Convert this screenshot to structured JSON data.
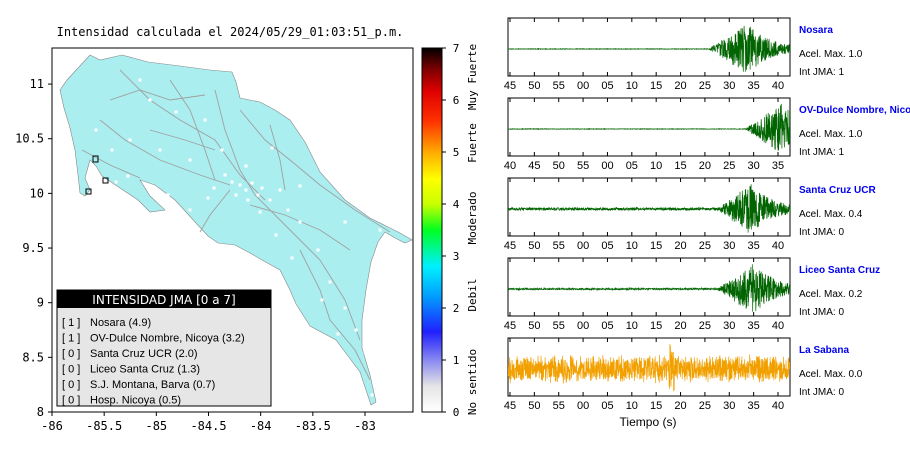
{
  "map": {
    "title": "Intensidad calculada el 2024/05/29_01:03:51_p.m.",
    "land_color": "#aaeef0",
    "x_ticks": [
      "-86",
      "-85.5",
      "-85",
      "-84.5",
      "-84",
      "-83.5",
      "-83"
    ],
    "y_ticks": [
      "11",
      "10.5",
      "10",
      "9.5",
      "9",
      "8.5",
      "8"
    ]
  },
  "colorbar": {
    "ticks": [
      "0",
      "1",
      "2",
      "3",
      "4",
      "5",
      "6",
      "7"
    ],
    "labels": [
      "No sentido",
      "Debil",
      "Moderado",
      "Fuerte",
      "Muy Fuerte"
    ]
  },
  "legend": {
    "title": "INTENSIDAD JMA [0 a 7]",
    "items": [
      {
        "code": "[ 1 ]",
        "text": "Nosara (4.9)"
      },
      {
        "code": "[ 1 ]",
        "text": "OV-Dulce Nombre, Nicoya (3.2)"
      },
      {
        "code": "[ 0 ]",
        "text": "Santa Cruz UCR (2.0)"
      },
      {
        "code": "[ 0 ]",
        "text": "Liceo Santa Cruz (1.3)"
      },
      {
        "code": "[ 0 ]",
        "text": "S.J. Montana, Barva (0.7)"
      },
      {
        "code": "[ 0 ]",
        "text": "Hosp. Nicoya (0.5)"
      }
    ]
  },
  "chart_data": {
    "type": "line",
    "xlabel": "Tiempo (s)",
    "panels": [
      {
        "name": "Nosara",
        "accel": "Acel. Max. 1.0",
        "jma": "Int JMA: 1",
        "ticks": [
          "45",
          "50",
          "55",
          "00",
          "05",
          "10",
          "15",
          "20",
          "25",
          "30",
          "35",
          "40"
        ],
        "color": "#006400",
        "event_start": 0.71,
        "peak": 0.85,
        "noise": 0.01
      },
      {
        "name": "OV-Dulce Nombre, Nicoya",
        "accel": "Acel. Max. 1.0",
        "jma": "Int JMA: 1",
        "ticks": [
          "40",
          "45",
          "50",
          "55",
          "00",
          "05",
          "10",
          "15",
          "20",
          "25",
          "30",
          "35"
        ],
        "color": "#006400",
        "event_start": 0.84,
        "peak": 0.97,
        "noise": 0.01
      },
      {
        "name": "Santa Cruz UCR",
        "accel": "Acel. Max. 0.4",
        "jma": "Int JMA: 0",
        "ticks": [
          "45",
          "50",
          "55",
          "00",
          "05",
          "10",
          "15",
          "20",
          "25",
          "30",
          "35",
          "40"
        ],
        "color": "#006400",
        "event_start": 0.74,
        "peak": 0.86,
        "noise": 0.05
      },
      {
        "name": "Liceo Santa Cruz",
        "accel": "Acel. Max. 0.2",
        "jma": "Int JMA: 0",
        "ticks": [
          "45",
          "50",
          "55",
          "00",
          "05",
          "10",
          "15",
          "20",
          "25",
          "30",
          "35",
          "40"
        ],
        "color": "#006400",
        "event_start": 0.74,
        "peak": 0.87,
        "noise": 0.03
      },
      {
        "name": "La Sabana",
        "accel": "Acel. Max. 0.0",
        "jma": "Int JMA: 0",
        "ticks": [
          "45",
          "50",
          "55",
          "00",
          "05",
          "10",
          "15",
          "20",
          "25",
          "30",
          "35",
          "40"
        ],
        "color": "#f2a000",
        "event_start": -1,
        "peak": 0.55,
        "noise": 0.55
      }
    ]
  }
}
